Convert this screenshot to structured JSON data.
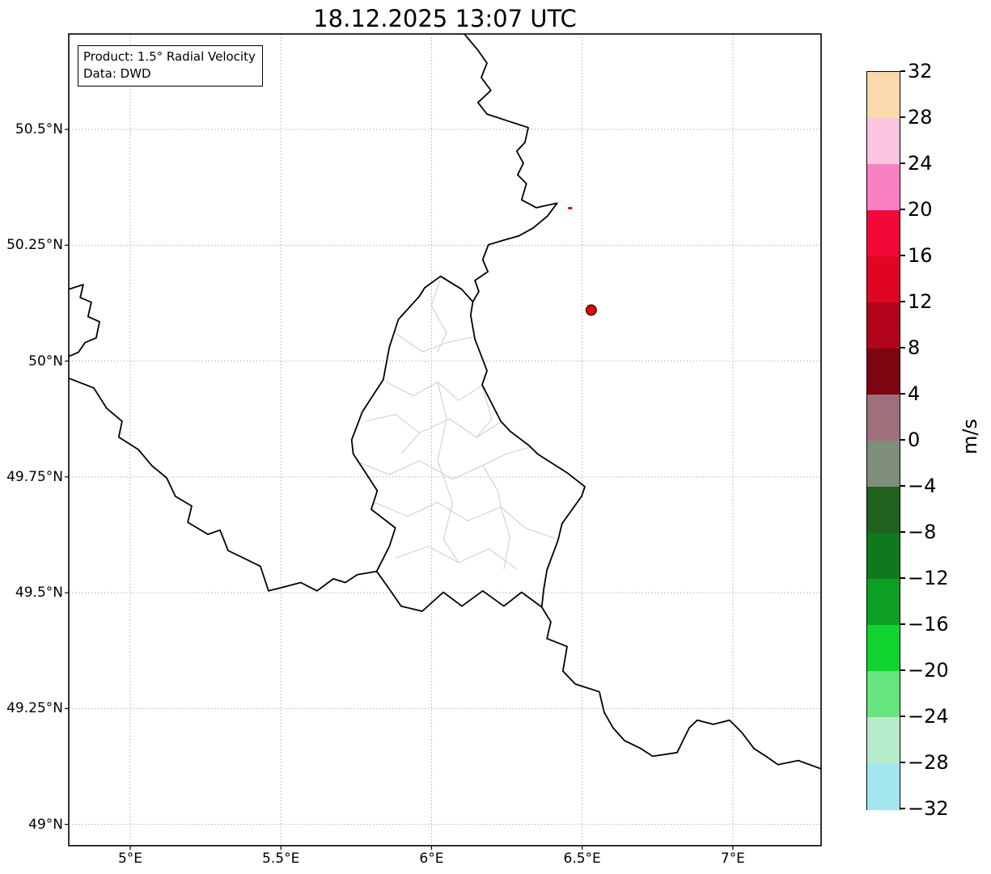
{
  "title": "18.12.2025 13:07 UTC",
  "annotation": {
    "line1": "Product: 1.5° Radial Velocity",
    "line2": "Data: DWD"
  },
  "chart_data": {
    "type": "map",
    "title": "18.12.2025 13:07 UTC",
    "product": "1.5° Radial Velocity",
    "data_source": "DWD",
    "extent": {
      "lon_min": 4.796,
      "lon_max": 7.293,
      "lat_min": 48.954,
      "lat_max": 50.706
    },
    "x_ticks": [
      {
        "lon": 5.0,
        "label": "5°E"
      },
      {
        "lon": 5.5,
        "label": "5.5°E"
      },
      {
        "lon": 6.0,
        "label": "6°E"
      },
      {
        "lon": 6.5,
        "label": "6.5°E"
      },
      {
        "lon": 7.0,
        "label": "7°E"
      }
    ],
    "y_ticks": [
      {
        "lat": 50.5,
        "label": "50.5°N"
      },
      {
        "lat": 50.25,
        "label": "50.25°N"
      },
      {
        "lat": 50.0,
        "label": "50°N"
      },
      {
        "lat": 49.75,
        "label": "49.75°N"
      },
      {
        "lat": 49.5,
        "label": "49.5°N"
      },
      {
        "lat": 49.25,
        "label": "49.25°N"
      },
      {
        "lat": 49.0,
        "label": "49°N"
      }
    ],
    "radar_site": {
      "lon": 6.53,
      "lat": 50.11,
      "color": "#e50000"
    },
    "velocity_echo": {
      "lon": 6.46,
      "lat": 50.33,
      "color": "#c41111"
    },
    "style": {
      "grid_color": "#b0b0b0",
      "border_color": "#000000",
      "district_color": "#cccccc",
      "frame_color": "#000000"
    },
    "colorbar": {
      "unit": "m/s",
      "range": [
        -32,
        32
      ],
      "tick_labels": [
        "32",
        "28",
        "24",
        "20",
        "16",
        "12",
        "8",
        "4",
        "0",
        "−4",
        "−8",
        "−12",
        "−16",
        "−20",
        "−24",
        "−28",
        "−32"
      ],
      "segment_colors_top_to_bottom": [
        "#fcd8ad",
        "#fbc4e0",
        "#f97fc3",
        "#f2093a",
        "#e00523",
        "#b2041a",
        "#7c0512",
        "#9f6f7c",
        "#7f8d7b",
        "#20611e",
        "#0f7a1d",
        "#0c9f24",
        "#11d42f",
        "#66e57e",
        "#b7ecca",
        "#a3e6ef"
      ]
    },
    "borders": {
      "country": [
        [
          [
            6.109,
            50.706
          ],
          [
            6.154,
            50.671
          ],
          [
            6.184,
            50.643
          ],
          [
            6.165,
            50.612
          ],
          [
            6.197,
            50.584
          ],
          [
            6.154,
            50.558
          ],
          [
            6.184,
            50.533
          ],
          [
            6.254,
            50.518
          ],
          [
            6.321,
            50.504
          ],
          [
            6.31,
            50.472
          ],
          [
            6.283,
            50.453
          ],
          [
            6.305,
            50.427
          ],
          [
            6.286,
            50.402
          ],
          [
            6.315,
            50.383
          ],
          [
            6.299,
            50.348
          ],
          [
            6.348,
            50.331
          ],
          [
            6.417,
            50.341
          ],
          [
            6.385,
            50.313
          ],
          [
            6.337,
            50.287
          ],
          [
            6.289,
            50.27
          ],
          [
            6.24,
            50.261
          ],
          [
            6.189,
            50.251
          ],
          [
            6.17,
            50.219
          ],
          [
            6.187,
            50.193
          ],
          [
            6.144,
            50.174
          ],
          [
            6.157,
            50.15
          ],
          [
            6.137,
            50.128
          ]
        ],
        [
          [
            6.137,
            50.128
          ],
          [
            6.1,
            50.155
          ],
          [
            6.03,
            50.183
          ],
          [
            5.977,
            50.158
          ],
          [
            5.96,
            50.14
          ],
          [
            5.89,
            50.09
          ],
          [
            5.86,
            50.03
          ],
          [
            5.84,
            49.96
          ],
          [
            5.8,
            49.92
          ],
          [
            5.77,
            49.89
          ],
          [
            5.735,
            49.83
          ],
          [
            5.74,
            49.8
          ],
          [
            5.79,
            49.75
          ],
          [
            5.82,
            49.72
          ],
          [
            5.8,
            49.68
          ],
          [
            5.88,
            49.64
          ],
          [
            5.86,
            49.6
          ],
          [
            5.818,
            49.546
          ],
          [
            5.859,
            49.509
          ],
          [
            5.899,
            49.471
          ],
          [
            5.969,
            49.46
          ],
          [
            6.039,
            49.501
          ],
          [
            6.101,
            49.471
          ],
          [
            6.17,
            49.504
          ],
          [
            6.24,
            49.471
          ],
          [
            6.299,
            49.501
          ],
          [
            6.366,
            49.469
          ],
          [
            6.372,
            49.506
          ],
          [
            6.383,
            49.549
          ],
          [
            6.42,
            49.614
          ],
          [
            6.433,
            49.649
          ],
          [
            6.498,
            49.708
          ],
          [
            6.509,
            49.729
          ],
          [
            6.45,
            49.759
          ],
          [
            6.353,
            49.799
          ],
          [
            6.323,
            49.818
          ],
          [
            6.262,
            49.848
          ],
          [
            6.23,
            49.87
          ],
          [
            6.168,
            49.949
          ],
          [
            6.184,
            49.979
          ],
          [
            6.144,
            50.047
          ],
          [
            6.13,
            50.099
          ],
          [
            6.137,
            50.128
          ]
        ],
        [
          [
            4.796,
            50.155
          ],
          [
            4.844,
            50.165
          ],
          [
            4.834,
            50.137
          ],
          [
            4.871,
            50.127
          ],
          [
            4.86,
            50.096
          ],
          [
            4.898,
            50.085
          ],
          [
            4.887,
            50.05
          ],
          [
            4.85,
            50.04
          ],
          [
            4.828,
            50.019
          ],
          [
            4.796,
            50.01
          ]
        ],
        [
          [
            4.796,
            49.963
          ],
          [
            4.879,
            49.942
          ],
          [
            4.922,
            49.898
          ],
          [
            4.973,
            49.87
          ],
          [
            4.962,
            49.836
          ],
          [
            5.027,
            49.809
          ],
          [
            5.072,
            49.774
          ],
          [
            5.121,
            49.748
          ],
          [
            5.15,
            49.708
          ],
          [
            5.204,
            49.687
          ],
          [
            5.191,
            49.652
          ],
          [
            5.258,
            49.626
          ],
          [
            5.298,
            49.635
          ],
          [
            5.325,
            49.591
          ],
          [
            5.379,
            49.574
          ],
          [
            5.432,
            49.557
          ],
          [
            5.459,
            49.504
          ],
          [
            5.513,
            49.513
          ],
          [
            5.566,
            49.522
          ],
          [
            5.62,
            49.504
          ],
          [
            5.674,
            49.53
          ],
          [
            5.714,
            49.522
          ],
          [
            5.754,
            49.539
          ],
          [
            5.818,
            49.546
          ]
        ],
        [
          [
            6.366,
            49.469
          ],
          [
            6.396,
            49.437
          ],
          [
            6.383,
            49.401
          ],
          [
            6.45,
            49.384
          ],
          [
            6.436,
            49.331
          ],
          [
            6.477,
            49.303
          ],
          [
            6.557,
            49.286
          ],
          [
            6.573,
            49.242
          ],
          [
            6.603,
            49.208
          ],
          [
            6.64,
            49.181
          ],
          [
            6.694,
            49.164
          ],
          [
            6.734,
            49.147
          ],
          [
            6.815,
            49.155
          ],
          [
            6.855,
            49.208
          ],
          [
            6.882,
            49.225
          ],
          [
            6.935,
            49.216
          ],
          [
            6.989,
            49.225
          ],
          [
            7.029,
            49.199
          ],
          [
            7.07,
            49.164
          ],
          [
            7.11,
            49.147
          ],
          [
            7.15,
            49.129
          ],
          [
            7.217,
            49.138
          ],
          [
            7.293,
            49.12
          ]
        ]
      ],
      "districts": [
        [
          [
            6.03,
            50.18
          ],
          [
            6.0,
            50.12
          ],
          [
            6.05,
            50.06
          ],
          [
            6.02,
            50.02
          ]
        ],
        [
          [
            5.88,
            50.06
          ],
          [
            5.97,
            50.02
          ],
          [
            6.05,
            50.04
          ],
          [
            6.138,
            50.052
          ]
        ],
        [
          [
            5.85,
            49.955
          ],
          [
            5.94,
            49.925
          ],
          [
            6.02,
            49.955
          ],
          [
            6.09,
            49.915
          ],
          [
            6.168,
            49.947
          ]
        ],
        [
          [
            5.78,
            49.87
          ],
          [
            5.88,
            49.885
          ],
          [
            5.96,
            49.845
          ],
          [
            6.06,
            49.875
          ],
          [
            6.15,
            49.835
          ],
          [
            6.228,
            49.868
          ]
        ],
        [
          [
            5.752,
            49.783
          ],
          [
            5.86,
            49.755
          ],
          [
            5.96,
            49.785
          ],
          [
            6.07,
            49.745
          ],
          [
            6.17,
            49.775
          ],
          [
            6.25,
            49.8
          ],
          [
            6.33,
            49.815
          ]
        ],
        [
          [
            5.81,
            49.695
          ],
          [
            5.92,
            49.665
          ],
          [
            6.02,
            49.695
          ],
          [
            6.12,
            49.655
          ],
          [
            6.23,
            49.685
          ],
          [
            6.31,
            49.64
          ],
          [
            6.42,
            49.615
          ]
        ],
        [
          [
            5.88,
            49.575
          ],
          [
            5.99,
            49.6
          ],
          [
            6.09,
            49.565
          ],
          [
            6.19,
            49.595
          ],
          [
            6.285,
            49.55
          ]
        ],
        [
          [
            6.02,
            49.955
          ],
          [
            6.05,
            49.875
          ],
          [
            6.02,
            49.785
          ],
          [
            6.07,
            49.695
          ],
          [
            6.04,
            49.615
          ],
          [
            6.09,
            49.565
          ]
        ],
        [
          [
            6.168,
            49.947
          ],
          [
            6.2,
            49.875
          ],
          [
            6.15,
            49.835
          ]
        ],
        [
          [
            6.17,
            49.775
          ],
          [
            6.22,
            49.72
          ],
          [
            6.23,
            49.685
          ],
          [
            6.26,
            49.62
          ],
          [
            6.24,
            49.55
          ]
        ],
        [
          [
            5.9,
            49.8
          ],
          [
            5.96,
            49.845
          ]
        ]
      ]
    }
  }
}
